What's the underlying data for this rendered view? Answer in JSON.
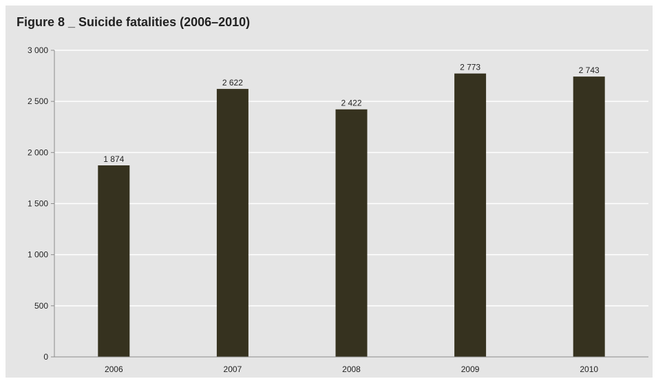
{
  "chart_data": {
    "type": "bar",
    "title": "Figure 8 _ Suicide fatalities (2006–2010)",
    "xlabel": "",
    "ylabel": "",
    "categories": [
      "2006",
      "2007",
      "2008",
      "2009",
      "2010"
    ],
    "values": [
      1874,
      2622,
      2422,
      2773,
      2743
    ],
    "value_labels": [
      "1 874",
      "2 622",
      "2 422",
      "2 773",
      "2 743"
    ],
    "ylim": [
      0,
      3000
    ],
    "yticks": [
      0,
      500,
      1000,
      1500,
      2000,
      2500,
      3000
    ],
    "ytick_labels": [
      "0",
      "500",
      "1 000",
      "1 500",
      "2 000",
      "2 500",
      "3 000"
    ],
    "grid": true,
    "legend": "none",
    "colors": {
      "bar": "#36321f",
      "background": "#e5e5e5",
      "grid": "#ffffff",
      "axis": "#8a8a8a"
    }
  }
}
